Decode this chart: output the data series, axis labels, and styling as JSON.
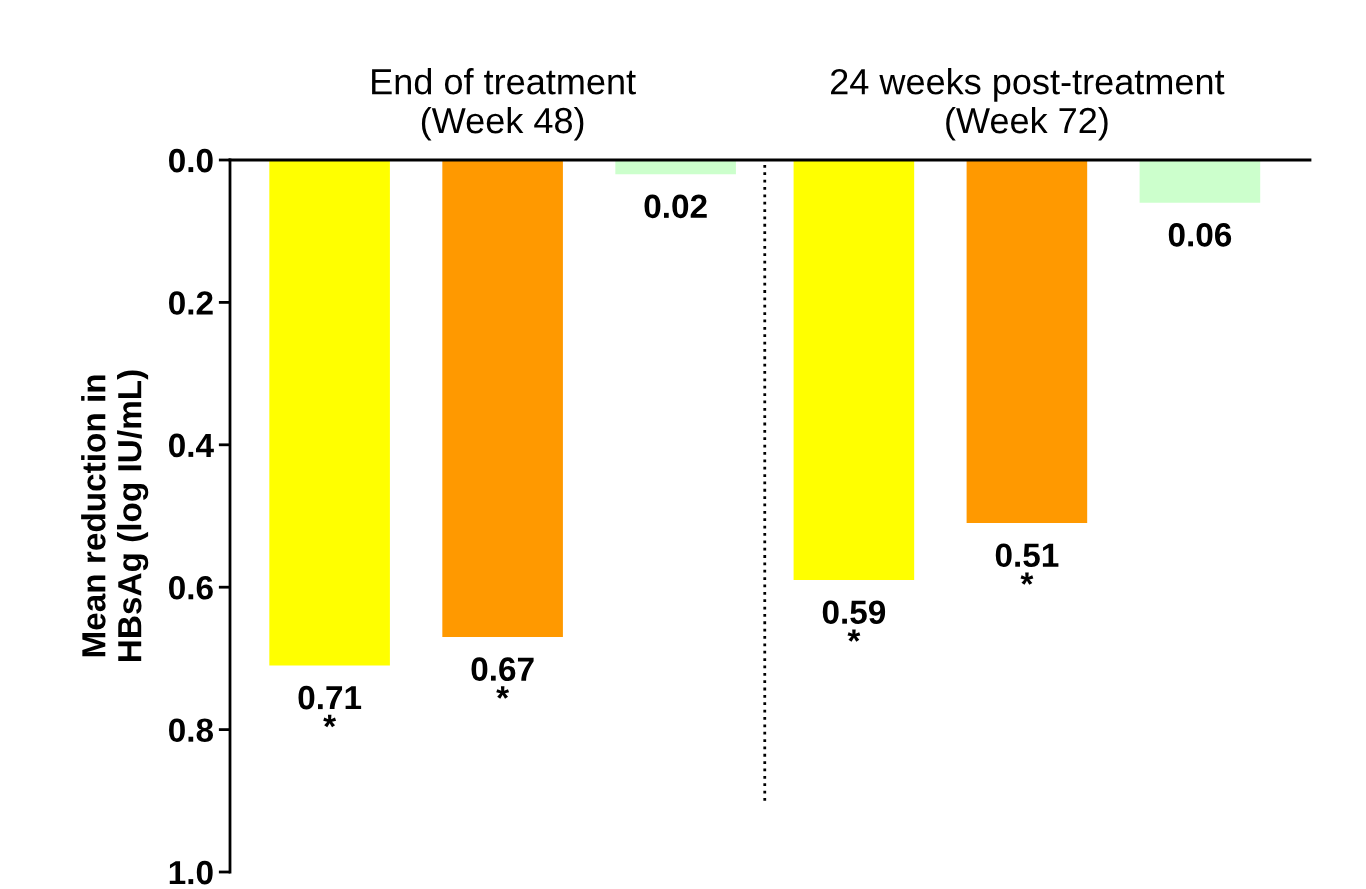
{
  "chart_data": {
    "type": "bar",
    "categories": [
      "End of treatment\n(Week 48)",
      "24 weeks post-treatment\n(Week 72)"
    ],
    "ylabel": "Mean reduction in\nHBsAg (log IU/mL)",
    "series": [
      {
        "color": "#ffff00",
        "values": [
          0.71,
          0.59
        ],
        "value_labels": [
          "0.71\n*",
          "0.59\n*"
        ]
      },
      {
        "color": "#ff9900",
        "values": [
          0.67,
          0.51
        ],
        "value_labels": [
          "0.67\n*",
          "0.51\n*"
        ]
      },
      {
        "color": "#ccffcc",
        "values": [
          0.02,
          0.06
        ],
        "value_labels": [
          "0.02",
          "0.06"
        ]
      }
    ],
    "ylim": [
      1.0,
      0.0
    ],
    "yticks": [
      "0.0",
      0.2,
      0.4,
      0.6,
      0.8,
      "1.0"
    ],
    "grid": false,
    "legend": false
  }
}
